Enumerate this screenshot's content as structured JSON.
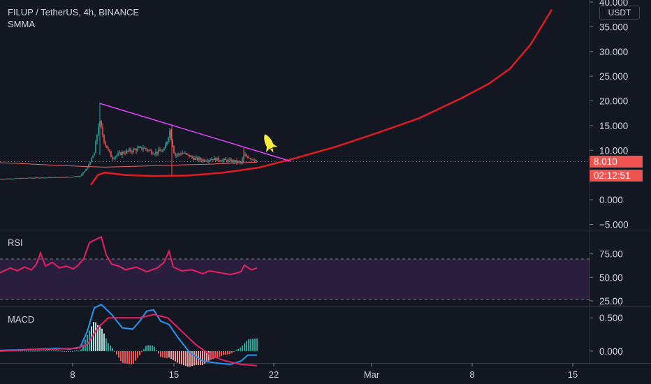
{
  "header": {
    "symbol": "FILUP / TetherUS, 4h, BINANCE",
    "indicator": "SMMA",
    "currency": "USDT"
  },
  "price_labels": {
    "last_price": "8.010",
    "countdown": "02:12:51"
  },
  "panes": {
    "rsi_label": "RSI",
    "macd_label": "MACD"
  },
  "colors": {
    "background": "#131722",
    "up": "#26a69a",
    "down": "#ef5350",
    "smma": "#e31b23",
    "trendline": "#e040fb",
    "rsi": "#e91e63",
    "rsi_band": "#2a1e3f",
    "macd": "#2196f3",
    "signal": "#e91e63",
    "price_badge": "#ef5350",
    "rocket": "#ffeb3b"
  },
  "annotations": {
    "rocket_icon": "rocket-icon"
  },
  "chart_data": [
    {
      "type": "candlestick",
      "x_ticks": [
        "8",
        "15",
        "22",
        "Mar",
        "8",
        "15"
      ],
      "y_ticks": [
        "40.000",
        "35.000",
        "30.000",
        "25.000",
        "20.000",
        "15.000",
        "10.000",
        "0.000",
        "−5.000"
      ],
      "ylim": [
        -5.5,
        40
      ],
      "grid": false,
      "legend": "top-left",
      "last_value": 8.01,
      "price_path": [
        [
          0,
          4.2
        ],
        [
          40,
          4.4
        ],
        [
          70,
          4.5
        ],
        [
          100,
          4.6
        ],
        [
          115,
          4.8
        ],
        [
          125,
          6.5
        ],
        [
          135,
          9.5
        ],
        [
          142,
          16.0
        ],
        [
          150,
          11.5
        ],
        [
          160,
          8.5
        ],
        [
          175,
          9.5
        ],
        [
          190,
          10.0
        ],
        [
          205,
          10.5
        ],
        [
          220,
          9.5
        ],
        [
          235,
          10.0
        ],
        [
          243,
          14.0
        ],
        [
          250,
          9.0
        ],
        [
          262,
          9.5
        ],
        [
          275,
          8.5
        ],
        [
          290,
          8.0
        ],
        [
          305,
          8.3
        ],
        [
          320,
          8.0
        ],
        [
          335,
          7.8
        ],
        [
          345,
          7.5
        ],
        [
          350,
          9.0
        ],
        [
          358,
          8.5
        ],
        [
          368,
          8.0
        ]
      ],
      "smma_short": [
        [
          0,
          7.5
        ],
        [
          60,
          7.1
        ],
        [
          110,
          6.8
        ],
        [
          150,
          6.6
        ],
        [
          200,
          6.8
        ],
        [
          250,
          7.0
        ],
        [
          300,
          7.2
        ],
        [
          368,
          7.6
        ]
      ],
      "smma_long": [
        [
          130,
          3.0
        ],
        [
          140,
          5.0
        ],
        [
          150,
          5.5
        ],
        [
          180,
          5.0
        ],
        [
          220,
          4.8
        ],
        [
          270,
          4.9
        ],
        [
          320,
          5.5
        ],
        [
          370,
          6.5
        ],
        [
          420,
          8.3
        ],
        [
          480,
          10.7
        ],
        [
          540,
          13.5
        ],
        [
          600,
          16.5
        ],
        [
          660,
          20.5
        ],
        [
          700,
          23.5
        ],
        [
          730,
          26.5
        ],
        [
          760,
          31.5
        ],
        [
          790,
          38.5
        ]
      ],
      "trendline": [
        [
          143,
          19.5
        ],
        [
          416,
          7.8
        ]
      ]
    },
    {
      "type": "line",
      "series": [
        {
          "values": [
            [
              0,
              55
            ],
            [
              15,
              60
            ],
            [
              25,
              57
            ],
            [
              35,
              61
            ],
            [
              45,
              58
            ],
            [
              52,
              64
            ],
            [
              58,
              76
            ],
            [
              65,
              62
            ],
            [
              75,
              66
            ],
            [
              85,
              60
            ],
            [
              95,
              62
            ],
            [
              105,
              59
            ],
            [
              112,
              63
            ],
            [
              120,
              70
            ],
            [
              128,
              87
            ],
            [
              136,
              90
            ],
            [
              145,
              93
            ],
            [
              152,
              74
            ],
            [
              160,
              64
            ],
            [
              170,
              62
            ],
            [
              180,
              58
            ],
            [
              195,
              61
            ],
            [
              210,
              56
            ],
            [
              225,
              60
            ],
            [
              235,
              66
            ],
            [
              242,
              78
            ],
            [
              248,
              61
            ],
            [
              260,
              57
            ],
            [
              275,
              58
            ],
            [
              290,
              54
            ],
            [
              300,
              57
            ],
            [
              315,
              55
            ],
            [
              330,
              53
            ],
            [
              345,
              56
            ],
            [
              350,
              63
            ],
            [
              360,
              58
            ],
            [
              368,
              60
            ]
          ]
        }
      ],
      "y_ticks": [
        "75.00",
        "50.00",
        "25.00"
      ],
      "ylim": [
        19,
        100
      ],
      "bands": [
        30,
        70
      ]
    },
    {
      "type": "bar",
      "y_ticks": [
        "0.500",
        "0.000"
      ],
      "ylim": [
        -0.18,
        0.66
      ],
      "histogram_note": "positive = teal, negative = red"
    }
  ]
}
